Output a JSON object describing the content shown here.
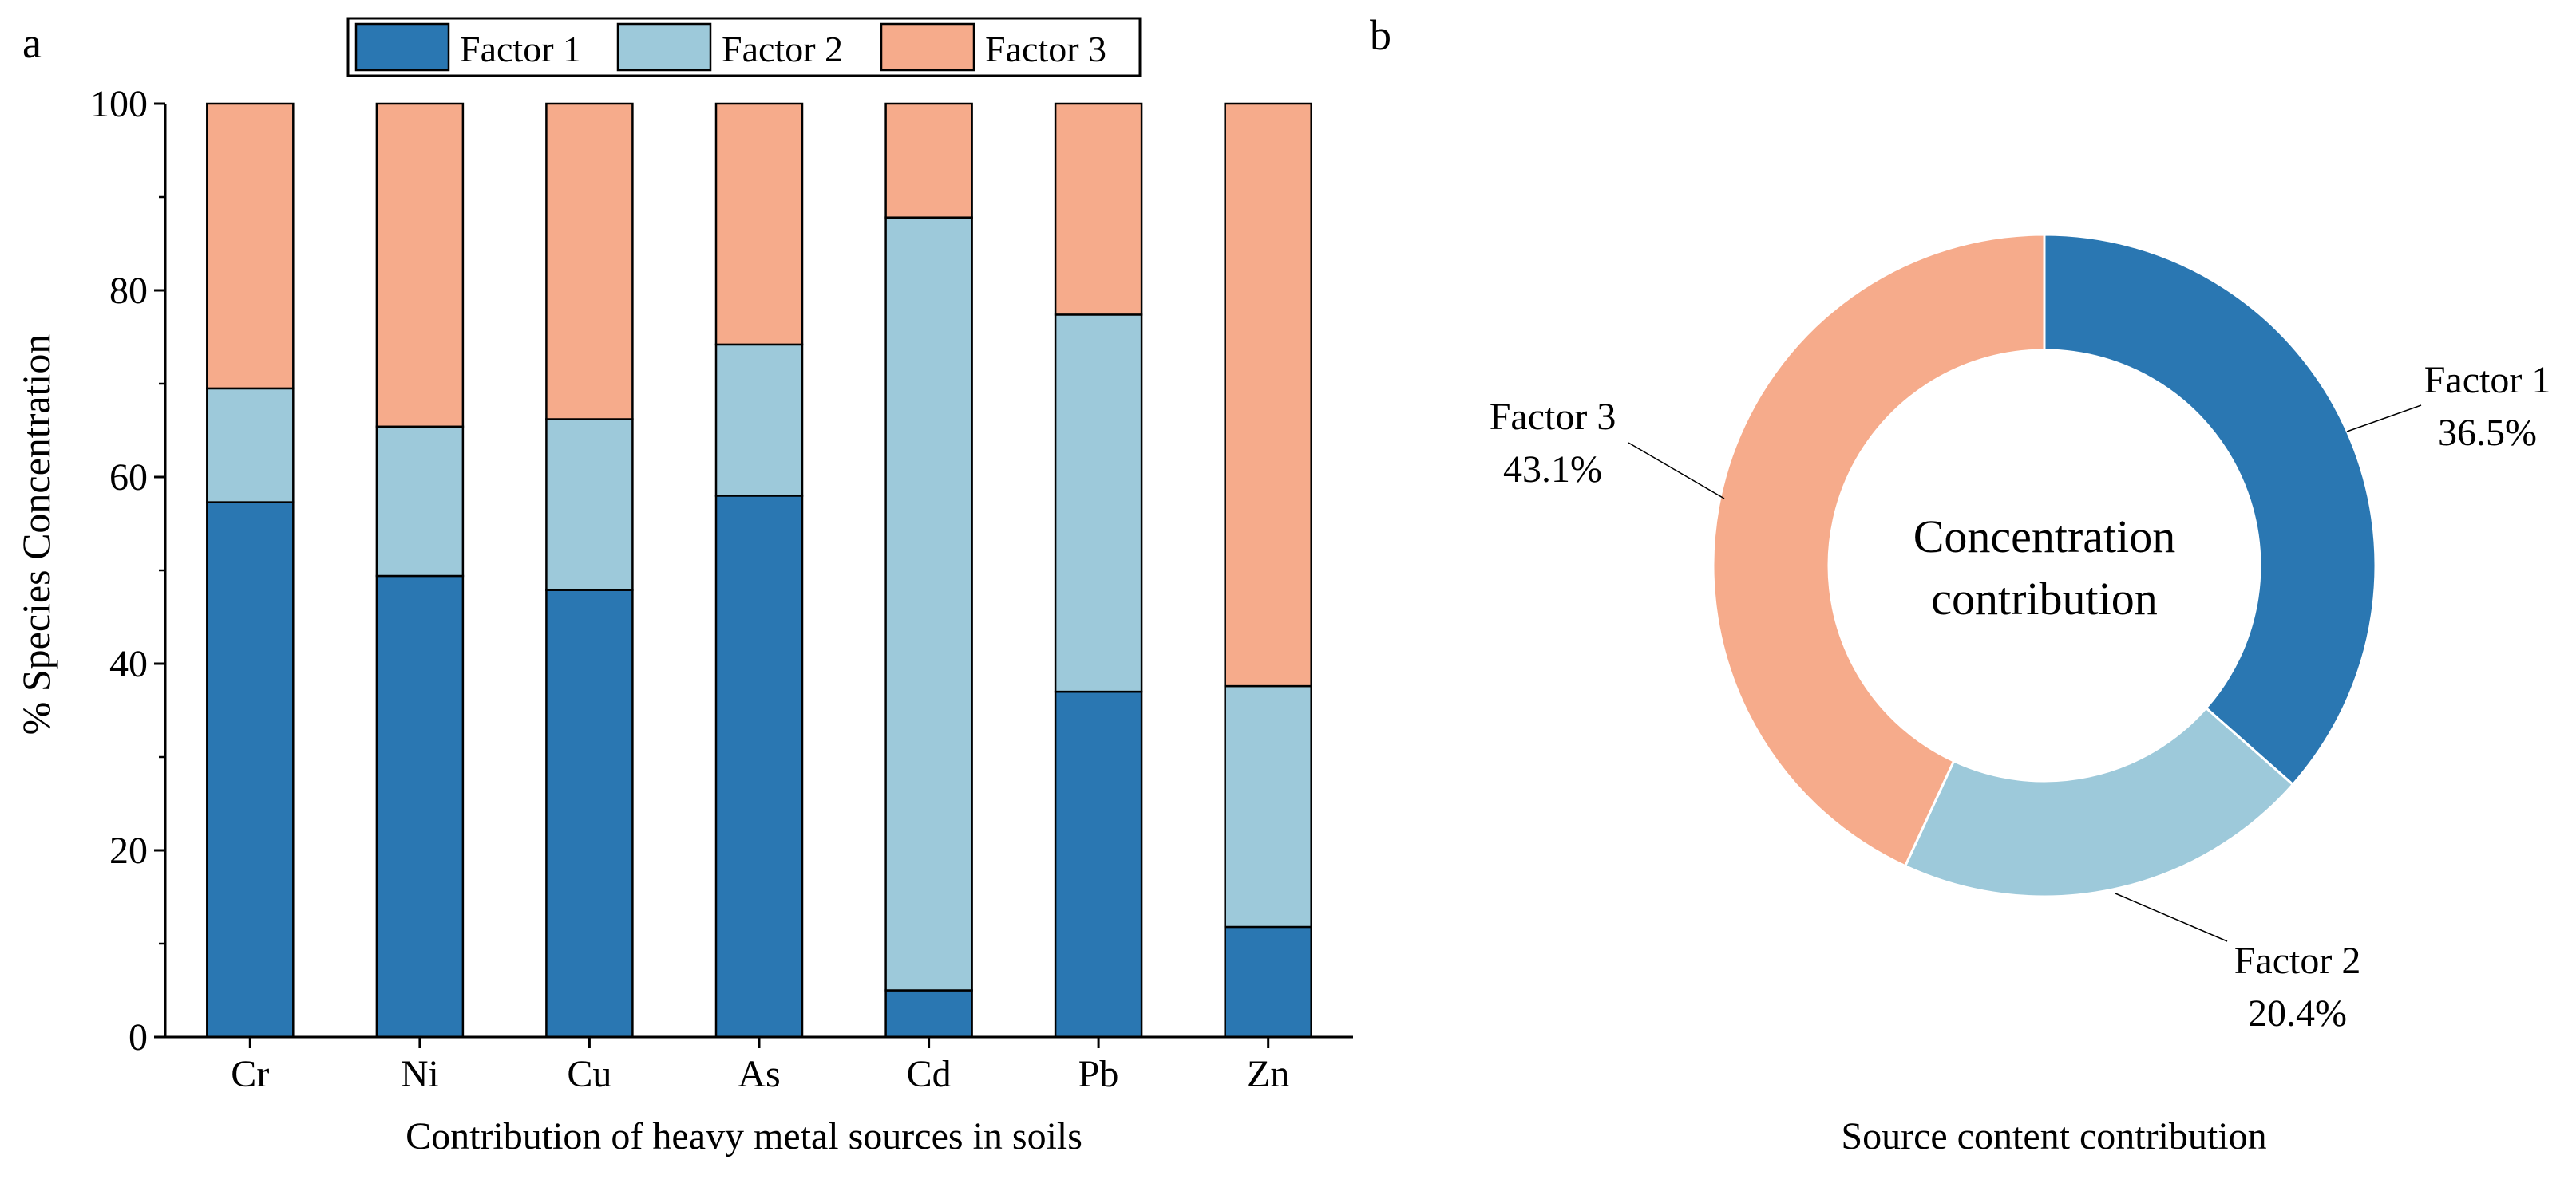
{
  "colors": {
    "factor1": "#2a77b2",
    "factor2": "#9dc9da",
    "factor3": "#f6ab8b",
    "axis": "#000000"
  },
  "chart_data": [
    {
      "panel_label": "a",
      "type": "bar",
      "stacked": true,
      "categories": [
        "Cr",
        "Ni",
        "Cu",
        "As",
        "Cd",
        "Pb",
        "Zn"
      ],
      "series": [
        {
          "name": "Factor 1",
          "values": [
            57.3,
            49.4,
            47.9,
            58.0,
            5.0,
            37.0,
            11.8
          ]
        },
        {
          "name": "Factor 2",
          "values": [
            12.2,
            16.0,
            18.3,
            16.2,
            82.8,
            40.4,
            25.8
          ]
        },
        {
          "name": "Factor 3",
          "values": [
            30.5,
            34.6,
            33.8,
            25.8,
            12.2,
            22.6,
            62.4
          ]
        }
      ],
      "title": "",
      "xlabel": "Contribution of heavy metal sources in soils",
      "ylabel": "% Species Concentration",
      "ylim": [
        0,
        100
      ],
      "yticks": [
        "0",
        "20",
        "40",
        "60",
        "80",
        "100"
      ],
      "legend": {
        "placement": "top",
        "entries": [
          "Factor 1",
          "Factor 2",
          "Factor 3"
        ]
      }
    },
    {
      "panel_label": "b",
      "type": "pie",
      "donut": true,
      "center_label": [
        "Concentration",
        "contribution"
      ],
      "xlabel": "Source content contribution",
      "slices": [
        {
          "name": "Factor 1",
          "value": 36.5,
          "label": "36.5%"
        },
        {
          "name": "Factor 2",
          "value": 20.4,
          "label": "20.4%"
        },
        {
          "name": "Factor 3",
          "value": 43.1,
          "label": "43.1%"
        }
      ]
    }
  ]
}
